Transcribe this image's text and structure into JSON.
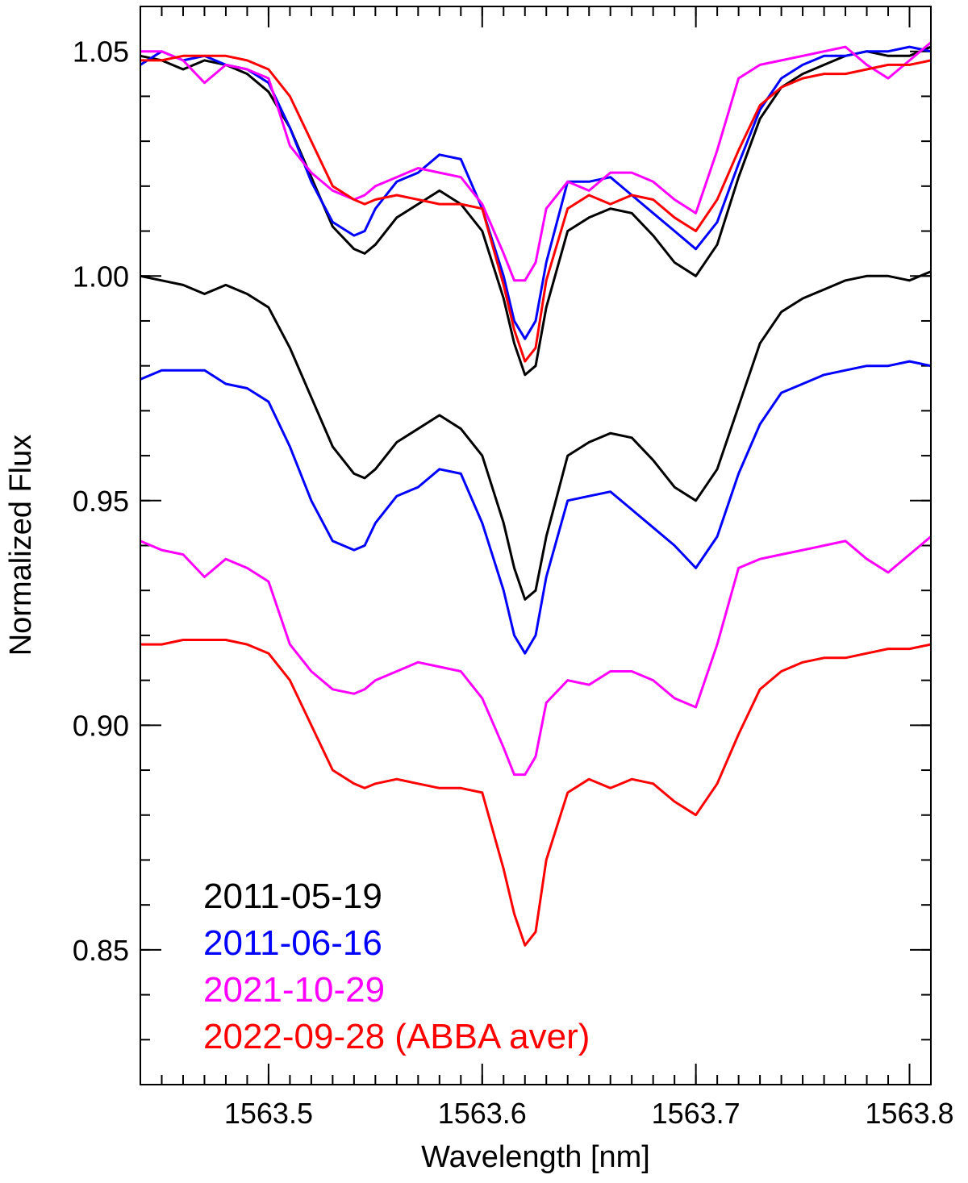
{
  "chart_data": {
    "type": "line",
    "title": "",
    "xlabel": "Wavelength [nm]",
    "ylabel": "Normalized Flux",
    "xlim": [
      1563.44,
      1563.81
    ],
    "ylim": [
      0.82,
      1.06
    ],
    "x_ticks": [
      1563.5,
      1563.6,
      1563.7,
      1563.8
    ],
    "x_tick_labels": [
      "1563.5",
      "1563.6",
      "1563.7",
      "1563.8"
    ],
    "y_ticks": [
      0.85,
      0.9,
      0.95,
      1.0,
      1.05
    ],
    "y_tick_labels": [
      "0.85",
      "0.90",
      "0.95",
      "1.00",
      "1.05"
    ],
    "grid": false,
    "legend_position": "bottom-left",
    "series": [
      {
        "name": "2011-05-19",
        "color": "#000000",
        "x": [
          1563.44,
          1563.45,
          1563.46,
          1563.47,
          1563.48,
          1563.49,
          1563.5,
          1563.51,
          1563.52,
          1563.53,
          1563.54,
          1563.545,
          1563.55,
          1563.56,
          1563.57,
          1563.58,
          1563.59,
          1563.6,
          1563.61,
          1563.615,
          1563.62,
          1563.625,
          1563.63,
          1563.64,
          1563.65,
          1563.66,
          1563.67,
          1563.68,
          1563.69,
          1563.7,
          1563.71,
          1563.72,
          1563.73,
          1563.74,
          1563.75,
          1563.76,
          1563.77,
          1563.78,
          1563.79,
          1563.8,
          1563.81
        ],
        "y": [
          1.0,
          0.999,
          0.998,
          0.996,
          0.998,
          0.996,
          0.993,
          0.984,
          0.973,
          0.962,
          0.956,
          0.955,
          0.957,
          0.963,
          0.966,
          0.969,
          0.966,
          0.96,
          0.945,
          0.935,
          0.928,
          0.93,
          0.942,
          0.96,
          0.963,
          0.965,
          0.964,
          0.959,
          0.953,
          0.95,
          0.957,
          0.971,
          0.985,
          0.992,
          0.995,
          0.997,
          0.999,
          1.0,
          1.0,
          0.999,
          1.001
        ]
      },
      {
        "name": "2011-06-16",
        "color": "#0000ff",
        "x": [
          1563.44,
          1563.45,
          1563.46,
          1563.47,
          1563.48,
          1563.49,
          1563.5,
          1563.51,
          1563.52,
          1563.53,
          1563.54,
          1563.545,
          1563.55,
          1563.56,
          1563.57,
          1563.58,
          1563.59,
          1563.6,
          1563.61,
          1563.615,
          1563.62,
          1563.625,
          1563.63,
          1563.64,
          1563.65,
          1563.66,
          1563.67,
          1563.68,
          1563.69,
          1563.7,
          1563.71,
          1563.72,
          1563.73,
          1563.74,
          1563.75,
          1563.76,
          1563.77,
          1563.78,
          1563.79,
          1563.8,
          1563.81
        ],
        "y": [
          0.977,
          0.979,
          0.979,
          0.979,
          0.976,
          0.975,
          0.972,
          0.962,
          0.95,
          0.941,
          0.939,
          0.94,
          0.945,
          0.951,
          0.953,
          0.957,
          0.956,
          0.945,
          0.93,
          0.92,
          0.916,
          0.92,
          0.933,
          0.95,
          0.951,
          0.952,
          0.948,
          0.944,
          0.94,
          0.935,
          0.942,
          0.956,
          0.967,
          0.974,
          0.976,
          0.978,
          0.979,
          0.98,
          0.98,
          0.981,
          0.98
        ]
      },
      {
        "name": "2021-10-29",
        "color": "#ff00ff",
        "x": [
          1563.44,
          1563.45,
          1563.46,
          1563.47,
          1563.48,
          1563.49,
          1563.5,
          1563.51,
          1563.52,
          1563.53,
          1563.54,
          1563.545,
          1563.55,
          1563.56,
          1563.57,
          1563.58,
          1563.59,
          1563.6,
          1563.61,
          1563.615,
          1563.62,
          1563.625,
          1563.63,
          1563.64,
          1563.65,
          1563.66,
          1563.67,
          1563.68,
          1563.69,
          1563.7,
          1563.71,
          1563.72,
          1563.73,
          1563.74,
          1563.75,
          1563.76,
          1563.77,
          1563.78,
          1563.79,
          1563.8,
          1563.81
        ],
        "y": [
          0.941,
          0.939,
          0.938,
          0.933,
          0.937,
          0.935,
          0.932,
          0.918,
          0.912,
          0.908,
          0.907,
          0.908,
          0.91,
          0.912,
          0.914,
          0.913,
          0.912,
          0.906,
          0.895,
          0.889,
          0.889,
          0.893,
          0.905,
          0.91,
          0.909,
          0.912,
          0.912,
          0.91,
          0.906,
          0.904,
          0.918,
          0.935,
          0.937,
          0.938,
          0.939,
          0.94,
          0.941,
          0.937,
          0.934,
          0.938,
          0.942
        ]
      },
      {
        "name": "2022-09-28 (ABBA aver)",
        "color": "#ff0000",
        "x": [
          1563.44,
          1563.45,
          1563.46,
          1563.47,
          1563.48,
          1563.49,
          1563.5,
          1563.51,
          1563.52,
          1563.53,
          1563.54,
          1563.545,
          1563.55,
          1563.56,
          1563.57,
          1563.58,
          1563.59,
          1563.6,
          1563.61,
          1563.615,
          1563.62,
          1563.625,
          1563.63,
          1563.64,
          1563.65,
          1563.66,
          1563.67,
          1563.68,
          1563.69,
          1563.7,
          1563.71,
          1563.72,
          1563.73,
          1563.74,
          1563.75,
          1563.76,
          1563.77,
          1563.78,
          1563.79,
          1563.8,
          1563.81
        ],
        "y": [
          0.918,
          0.918,
          0.919,
          0.919,
          0.919,
          0.918,
          0.916,
          0.91,
          0.9,
          0.89,
          0.887,
          0.886,
          0.887,
          0.888,
          0.887,
          0.886,
          0.886,
          0.885,
          0.868,
          0.858,
          0.851,
          0.854,
          0.87,
          0.885,
          0.888,
          0.886,
          0.888,
          0.887,
          0.883,
          0.88,
          0.887,
          0.898,
          0.908,
          0.912,
          0.914,
          0.915,
          0.915,
          0.916,
          0.917,
          0.917,
          0.918
        ]
      },
      {
        "name": "2011-05-19",
        "color": "#000000",
        "x": [
          1563.44,
          1563.45,
          1563.46,
          1563.47,
          1563.48,
          1563.49,
          1563.5,
          1563.51,
          1563.52,
          1563.53,
          1563.54,
          1563.545,
          1563.55,
          1563.56,
          1563.57,
          1563.58,
          1563.59,
          1563.6,
          1563.61,
          1563.615,
          1563.62,
          1563.625,
          1563.63,
          1563.64,
          1563.65,
          1563.66,
          1563.67,
          1563.68,
          1563.69,
          1563.7,
          1563.71,
          1563.72,
          1563.73,
          1563.74,
          1563.75,
          1563.76,
          1563.77,
          1563.78,
          1563.79,
          1563.8,
          1563.81
        ],
        "y": [
          1.049,
          1.048,
          1.046,
          1.048,
          1.047,
          1.045,
          1.041,
          1.033,
          1.022,
          1.011,
          1.006,
          1.005,
          1.007,
          1.013,
          1.016,
          1.019,
          1.016,
          1.01,
          0.995,
          0.985,
          0.978,
          0.98,
          0.993,
          1.01,
          1.013,
          1.015,
          1.014,
          1.009,
          1.003,
          1.0,
          1.007,
          1.022,
          1.035,
          1.042,
          1.045,
          1.047,
          1.049,
          1.05,
          1.049,
          1.049,
          1.051
        ]
      },
      {
        "name": "2011-06-16",
        "color": "#0000ff",
        "x": [
          1563.44,
          1563.45,
          1563.46,
          1563.47,
          1563.48,
          1563.49,
          1563.5,
          1563.51,
          1563.52,
          1563.53,
          1563.54,
          1563.545,
          1563.55,
          1563.56,
          1563.57,
          1563.58,
          1563.59,
          1563.6,
          1563.61,
          1563.615,
          1563.62,
          1563.625,
          1563.63,
          1563.64,
          1563.65,
          1563.66,
          1563.67,
          1563.68,
          1563.69,
          1563.7,
          1563.71,
          1563.72,
          1563.73,
          1563.74,
          1563.75,
          1563.76,
          1563.77,
          1563.78,
          1563.79,
          1563.8,
          1563.81
        ],
        "y": [
          1.047,
          1.05,
          1.048,
          1.049,
          1.047,
          1.046,
          1.043,
          1.033,
          1.021,
          1.012,
          1.009,
          1.01,
          1.015,
          1.021,
          1.023,
          1.027,
          1.026,
          1.015,
          1.0,
          0.99,
          0.986,
          0.99,
          1.003,
          1.021,
          1.021,
          1.022,
          1.018,
          1.014,
          1.01,
          1.006,
          1.012,
          1.025,
          1.037,
          1.044,
          1.047,
          1.049,
          1.049,
          1.05,
          1.05,
          1.051,
          1.05
        ]
      },
      {
        "name": "2021-10-29",
        "color": "#ff00ff",
        "x": [
          1563.44,
          1563.45,
          1563.46,
          1563.47,
          1563.48,
          1563.49,
          1563.5,
          1563.51,
          1563.52,
          1563.53,
          1563.54,
          1563.545,
          1563.55,
          1563.56,
          1563.57,
          1563.58,
          1563.59,
          1563.6,
          1563.61,
          1563.615,
          1563.62,
          1563.625,
          1563.63,
          1563.64,
          1563.65,
          1563.66,
          1563.67,
          1563.68,
          1563.69,
          1563.7,
          1563.71,
          1563.72,
          1563.73,
          1563.74,
          1563.75,
          1563.76,
          1563.77,
          1563.78,
          1563.79,
          1563.8,
          1563.81
        ],
        "y": [
          1.05,
          1.05,
          1.048,
          1.043,
          1.047,
          1.046,
          1.044,
          1.029,
          1.023,
          1.019,
          1.017,
          1.018,
          1.02,
          1.022,
          1.024,
          1.023,
          1.022,
          1.016,
          1.005,
          0.999,
          0.999,
          1.003,
          1.015,
          1.021,
          1.019,
          1.023,
          1.023,
          1.021,
          1.017,
          1.014,
          1.028,
          1.044,
          1.047,
          1.048,
          1.049,
          1.05,
          1.051,
          1.047,
          1.044,
          1.048,
          1.052
        ]
      },
      {
        "name": "2022-09-28 (ABBA aver)",
        "color": "#ff0000",
        "x": [
          1563.44,
          1563.45,
          1563.46,
          1563.47,
          1563.48,
          1563.49,
          1563.5,
          1563.51,
          1563.52,
          1563.53,
          1563.54,
          1563.545,
          1563.55,
          1563.56,
          1563.57,
          1563.58,
          1563.59,
          1563.6,
          1563.61,
          1563.615,
          1563.62,
          1563.625,
          1563.63,
          1563.64,
          1563.65,
          1563.66,
          1563.67,
          1563.68,
          1563.69,
          1563.7,
          1563.71,
          1563.72,
          1563.73,
          1563.74,
          1563.75,
          1563.76,
          1563.77,
          1563.78,
          1563.79,
          1563.8,
          1563.81
        ],
        "y": [
          1.048,
          1.048,
          1.049,
          1.049,
          1.049,
          1.048,
          1.046,
          1.04,
          1.03,
          1.02,
          1.017,
          1.016,
          1.017,
          1.018,
          1.017,
          1.016,
          1.016,
          1.015,
          0.998,
          0.988,
          0.981,
          0.984,
          0.999,
          1.015,
          1.018,
          1.016,
          1.018,
          1.017,
          1.013,
          1.01,
          1.017,
          1.028,
          1.038,
          1.042,
          1.044,
          1.045,
          1.045,
          1.046,
          1.047,
          1.047,
          1.048
        ]
      }
    ],
    "legend": [
      {
        "label": "2011-05-19",
        "color": "#000000"
      },
      {
        "label": "2011-06-16",
        "color": "#0000ff"
      },
      {
        "label": "2021-10-29",
        "color": "#ff00ff"
      },
      {
        "label": "2022-09-28 (ABBA aver)",
        "color": "#ff0000"
      }
    ]
  }
}
